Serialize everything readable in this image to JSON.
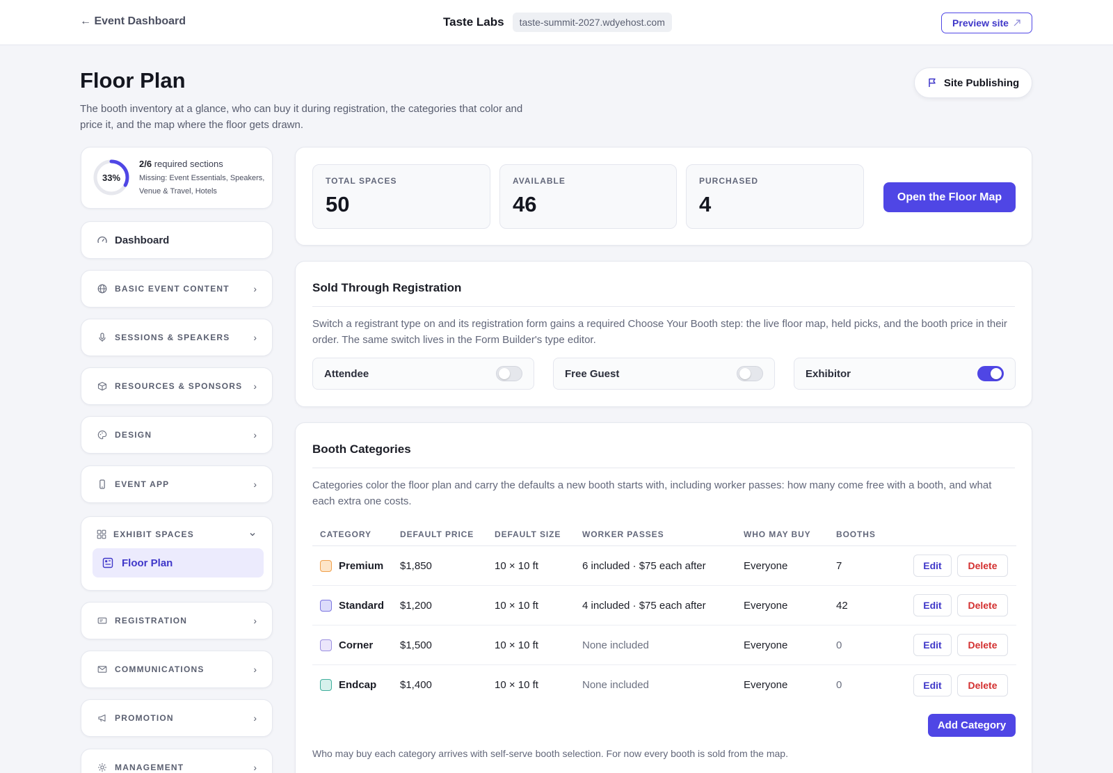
{
  "topbar": {
    "back_label": "← Event Dashboard",
    "org_name": "Taste Labs",
    "domain": "taste-summit-2027.wdyehost.com",
    "preview_label": "Preview site",
    "preview_icon": "external-arrow-icon"
  },
  "page": {
    "title": "Floor Plan",
    "subtitle": "The booth inventory at a glance, who can buy it during registration, the categories that color and price it, and the map where the floor gets drawn.",
    "site_publishing_label": "Site Publishing"
  },
  "progress": {
    "percent": 33,
    "percent_label": "33%",
    "count": "2/6",
    "count_suffix": " required sections",
    "missing": "Missing: Event Essentials, Speakers, Venue & Travel, Hotels"
  },
  "sidebar": {
    "dashboard": "Dashboard",
    "items": [
      {
        "label": "BASIC EVENT CONTENT",
        "icon": "globe-icon"
      },
      {
        "label": "SESSIONS & SPEAKERS",
        "icon": "microphone-icon"
      },
      {
        "label": "RESOURCES & SPONSORS",
        "icon": "box-icon"
      },
      {
        "label": "DESIGN",
        "icon": "palette-icon"
      },
      {
        "label": "EVENT APP",
        "icon": "phone-icon"
      },
      {
        "label": "EXHIBIT SPACES",
        "icon": "grid-icon"
      },
      {
        "label": "REGISTRATION",
        "icon": "ticket-icon"
      },
      {
        "label": "COMMUNICATIONS",
        "icon": "mail-icon"
      },
      {
        "label": "PROMOTION",
        "icon": "megaphone-icon"
      },
      {
        "label": "MANAGEMENT",
        "icon": "gear-icon"
      }
    ],
    "active_sub": "Floor Plan"
  },
  "stats": [
    {
      "label": "TOTAL SPACES",
      "value": "50"
    },
    {
      "label": "AVAILABLE",
      "value": "46"
    },
    {
      "label": "PURCHASED",
      "value": "4"
    }
  ],
  "open_map_label": "Open the Floor Map",
  "registration": {
    "title": "Sold Through Registration",
    "desc": "Switch a registrant type on and its registration form gains a required Choose Your Booth step: the live floor map, held picks, and the booth price in their order. The same switch lives in the Form Builder's type editor.",
    "types": [
      {
        "label": "Attendee",
        "on": false
      },
      {
        "label": "Free Guest",
        "on": false
      },
      {
        "label": "Exhibitor",
        "on": true
      }
    ]
  },
  "categories": {
    "title": "Booth Categories",
    "desc": "Categories color the floor plan and carry the defaults a new booth starts with, including worker passes: how many come free with a booth, and what each extra one costs.",
    "headers": [
      "CATEGORY",
      "DEFAULT PRICE",
      "DEFAULT SIZE",
      "WORKER PASSES",
      "WHO MAY BUY",
      "BOOTHS"
    ],
    "rows": [
      {
        "name": "Premium",
        "price": "$1,850",
        "size": "10 × 10 ft",
        "passes": "6 included · $75 each after",
        "who": "Everyone",
        "booths": "7",
        "fill": "#fde5c8",
        "border": "#f0a04b"
      },
      {
        "name": "Standard",
        "price": "$1,200",
        "size": "10 × 10 ft",
        "passes": "4 included · $75 each after",
        "who": "Everyone",
        "booths": "42",
        "fill": "#dcdcfb",
        "border": "#7c76e0"
      },
      {
        "name": "Corner",
        "price": "$1,500",
        "size": "10 × 10 ft",
        "passes": "None included",
        "who": "Everyone",
        "booths": "0",
        "fill": "#ebe6fb",
        "border": "#9a8fe0"
      },
      {
        "name": "Endcap",
        "price": "$1,400",
        "size": "10 × 10 ft",
        "passes": "None included",
        "who": "Everyone",
        "booths": "0",
        "fill": "#d6f1ec",
        "border": "#3fae9c"
      }
    ],
    "edit_label": "Edit",
    "delete_label": "Delete",
    "add_label": "Add Category",
    "footnote": "Who may buy each category arrives with self-serve booth selection. For now every booth is sold from the map."
  },
  "colors": {
    "accent": "#4f46e5",
    "danger": "#d32f2f",
    "background": "#f4f5f9"
  }
}
